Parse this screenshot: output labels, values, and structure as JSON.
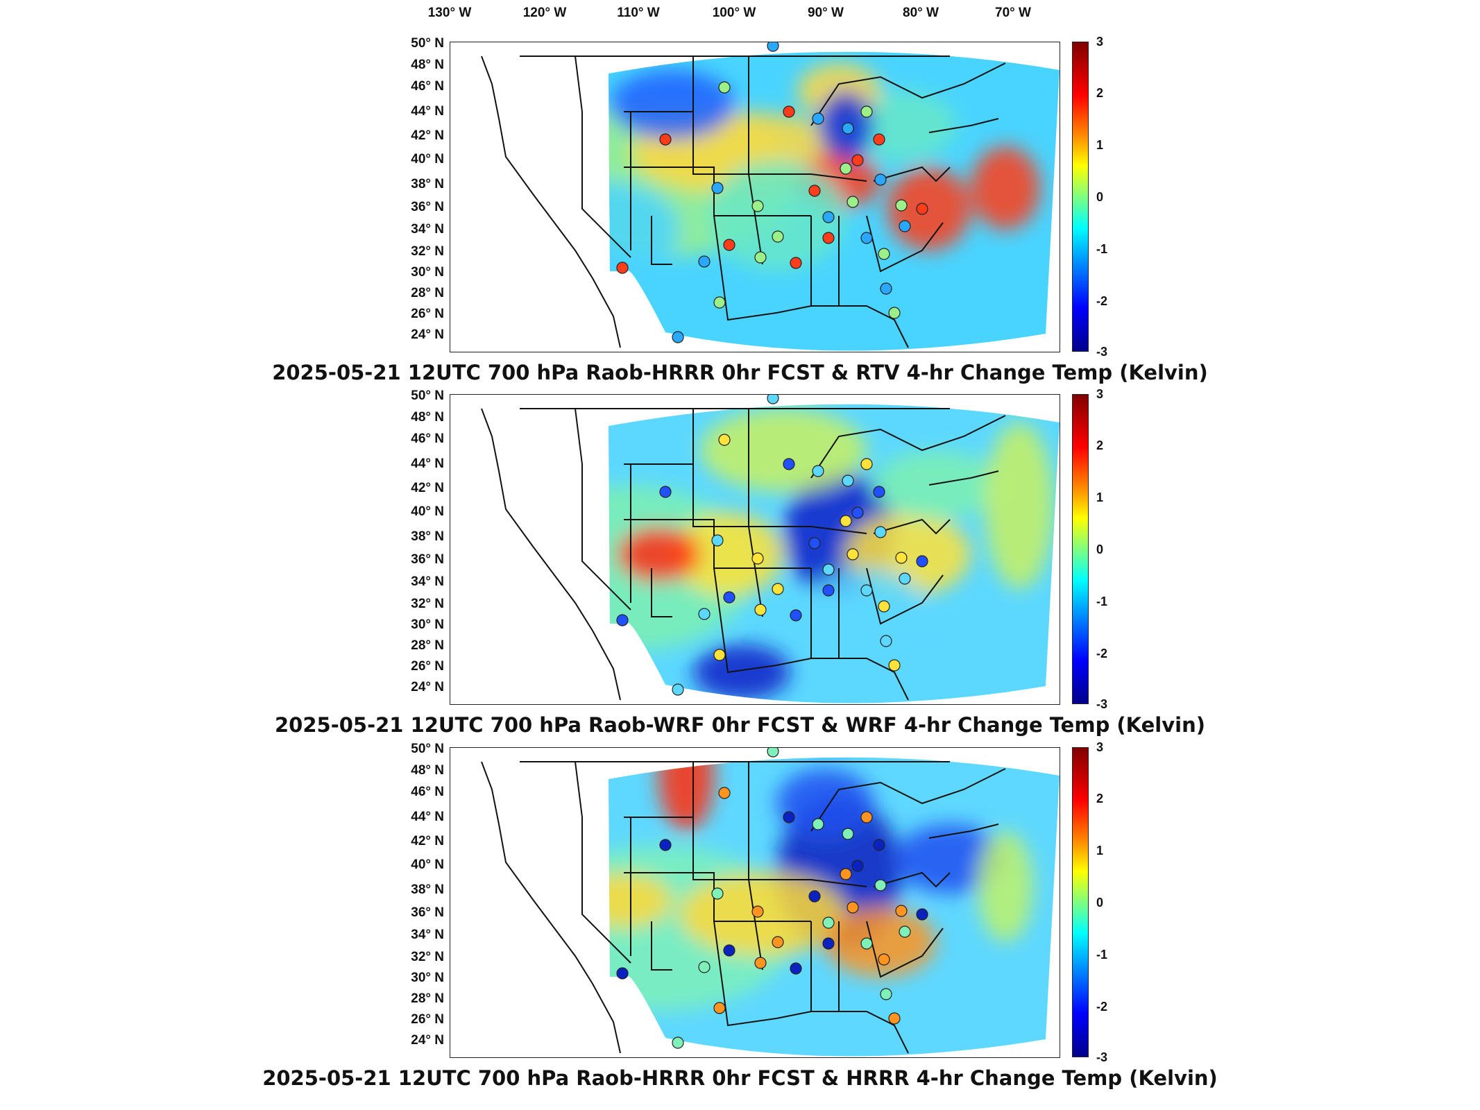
{
  "lon_labels": [
    {
      "deg": "130",
      "hem": "W"
    },
    {
      "deg": "120",
      "hem": "W"
    },
    {
      "deg": "110",
      "hem": "W"
    },
    {
      "deg": "100",
      "hem": "W"
    },
    {
      "deg": "90",
      "hem": "W"
    },
    {
      "deg": "80",
      "hem": "W"
    },
    {
      "deg": "70",
      "hem": "W"
    }
  ],
  "lat_labels": [
    {
      "deg": "50",
      "hem": "N"
    },
    {
      "deg": "48",
      "hem": "N"
    },
    {
      "deg": "46",
      "hem": "N"
    },
    {
      "deg": "44",
      "hem": "N"
    },
    {
      "deg": "42",
      "hem": "N"
    },
    {
      "deg": "40",
      "hem": "N"
    },
    {
      "deg": "38",
      "hem": "N"
    },
    {
      "deg": "36",
      "hem": "N"
    },
    {
      "deg": "34",
      "hem": "N"
    },
    {
      "deg": "32",
      "hem": "N"
    },
    {
      "deg": "30",
      "hem": "N"
    },
    {
      "deg": "28",
      "hem": "N"
    },
    {
      "deg": "26",
      "hem": "N"
    },
    {
      "deg": "24",
      "hem": "N"
    }
  ],
  "colorbar": {
    "ticks": [
      "3",
      "2",
      "1",
      "0",
      "-1",
      "-2",
      "-3"
    ],
    "min": -3,
    "max": 3,
    "colormap": "jet"
  },
  "panels": [
    {
      "title": "2025-05-21 12UTC 700 hPa Raob-HRRR 0hr FCST & RTV 4-hr Change Temp (Kelvin)"
    },
    {
      "title": "2025-05-21 12UTC 700 hPa Raob-WRF 0hr FCST & WRF 4-hr Change Temp (Kelvin)"
    },
    {
      "title": "2025-05-21 12UTC 700 hPa Raob-HRRR 0hr FCST & HRRR 4-hr Change Temp (Kelvin)"
    }
  ]
}
